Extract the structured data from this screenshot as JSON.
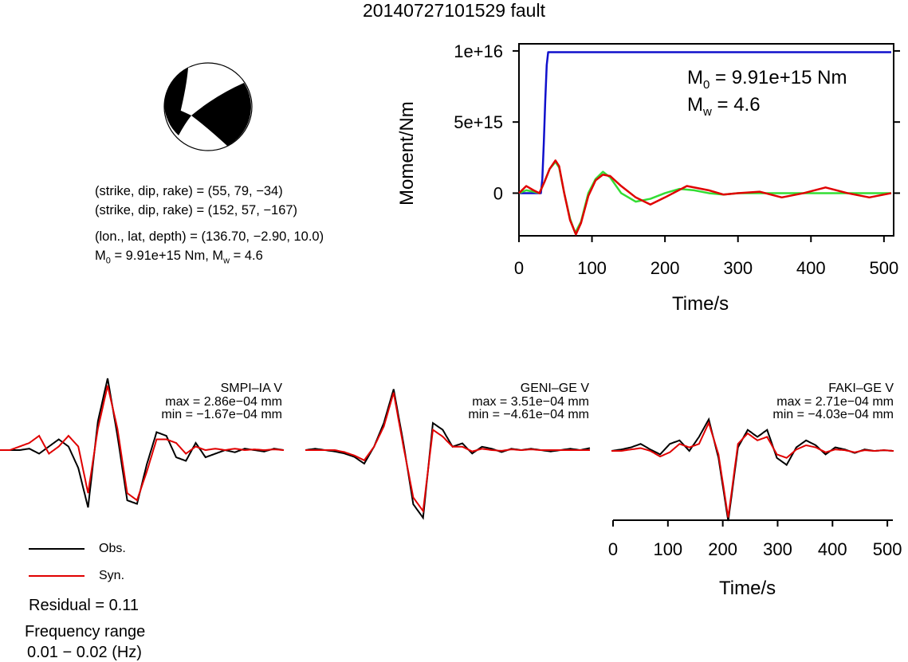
{
  "title": "20140727101529 fault",
  "mechanism": {
    "plane1": "(strike, dip, rake) = (55, 79, −34)",
    "plane2": "(strike, dip, rake) = (152, 57, −167)",
    "location": "(lon., lat, depth) = (136.70, −2.90, 10.0)",
    "moment_line_base": "M",
    "moment_line_sub": "0",
    "moment_line_rest": " = 9.91e+15 Nm, M",
    "moment_line_sub2": "w",
    "moment_line_end": " = 4.6"
  },
  "moment_panel": {
    "annot_m0_base": "M",
    "annot_m0_sub": "0",
    "annot_m0_value": " = 9.91e+15 Nm",
    "annot_mw_base": "M",
    "annot_mw_sub": "w",
    "annot_mw_value": " = 4.6"
  },
  "stations": [
    {
      "name": "SMPI–IA V",
      "max": "max = 2.86e−04 mm",
      "min": "min = −1.67e−04 mm"
    },
    {
      "name": "GENI–GE V",
      "max": "max = 3.51e−04 mm",
      "min": "min = −4.61e−04 mm"
    },
    {
      "name": "FAKI–GE V",
      "max": "max = 2.71e−04 mm",
      "min": "min = −4.03e−04 mm"
    }
  ],
  "legend": {
    "obs": "Obs.",
    "syn": "Syn."
  },
  "residual": "Residual = 0.11",
  "frequency_label": "Frequency range",
  "frequency_value": "0.01 − 0.02 (Hz)",
  "colors": {
    "obs": "#000000",
    "syn": "#e00000",
    "moment": "#1010cc",
    "green": "#33dd33"
  },
  "chart_data": [
    {
      "type": "line",
      "title": "",
      "xlabel": "Time/s",
      "ylabel": "Moment/Nm",
      "xlim": [
        0,
        510
      ],
      "ylim": [
        -3000000000000000.0,
        1.05e+16
      ],
      "xticks": [
        "0",
        "100",
        "200",
        "300",
        "400",
        "500"
      ],
      "yticks": [
        "0",
        "5e+15",
        "1e+16"
      ],
      "series": [
        {
          "key": "moment",
          "x": [
            0,
            10,
            28,
            30,
            32,
            34,
            36,
            38,
            40,
            60,
            100,
            200,
            300,
            400,
            510
          ],
          "y": [
            0,
            0,
            0,
            0,
            1000000000000000.0,
            3500000000000000.0,
            6500000000000000.0,
            9000000000000000.0,
            9910000000000000.0,
            9910000000000000.0,
            9910000000000000.0,
            9910000000000000.0,
            9910000000000000.0,
            9910000000000000.0,
            9910000000000000.0
          ]
        },
        {
          "key": "rate_green",
          "x": [
            0,
            10,
            20,
            28,
            35,
            42,
            50,
            55,
            62,
            70,
            77,
            85,
            95,
            105,
            115,
            125,
            140,
            160,
            180,
            200,
            220,
            240,
            260,
            280,
            300,
            330,
            360,
            400,
            450,
            510
          ],
          "y": [
            0,
            200000000000000.0,
            100000000000000.0,
            0,
            800000000000000.0,
            1700000000000000.0,
            2200000000000000.0,
            1800000000000000.0,
            0,
            -1800000000000000.0,
            -2800000000000000.0,
            -2000000000000000.0,
            0,
            1000000000000000.0,
            1500000000000000.0,
            1100000000000000.0,
            0,
            -600000000000000.0,
            -400000000000000.0,
            0,
            300000000000000.0,
            200000000000000.0,
            0,
            -100000000000000.0,
            0,
            0,
            0,
            0,
            0,
            0
          ]
        },
        {
          "key": "rate_red",
          "x": [
            0,
            10,
            20,
            28,
            35,
            42,
            50,
            55,
            62,
            70,
            78,
            85,
            95,
            105,
            115,
            125,
            140,
            160,
            180,
            200,
            230,
            260,
            280,
            300,
            330,
            360,
            390,
            420,
            450,
            480,
            510
          ],
          "y": [
            0,
            500000000000000.0,
            200000000000000.0,
            0,
            800000000000000.0,
            1700000000000000.0,
            2300000000000000.0,
            1900000000000000.0,
            0,
            -1900000000000000.0,
            -2900000000000000.0,
            -2100000000000000.0,
            -200000000000000.0,
            900000000000000.0,
            1300000000000000.0,
            1200000000000000.0,
            500000000000000.0,
            -300000000000000.0,
            -800000000000000.0,
            -300000000000000.0,
            500000000000000.0,
            200000000000000.0,
            -100000000000000.0,
            0,
            100000000000000.0,
            -300000000000000.0,
            0,
            400000000000000.0,
            0,
            -300000000000000.0,
            0
          ]
        }
      ]
    },
    {
      "type": "line",
      "title": "",
      "xlabel": "Time/s",
      "xlim": [
        0,
        510
      ],
      "xticks": [
        "0",
        "100",
        "200",
        "300",
        "400",
        "500"
      ],
      "traces": [
        {
          "station": "SMPI–IA V",
          "obs": [
            0,
            0,
            0,
            0.02,
            -0.05,
            0.05,
            0.15,
            0.05,
            -0.25,
            -0.8,
            0.4,
            1.0,
            0.2,
            -0.7,
            -0.75,
            -0.2,
            0.25,
            0.2,
            -0.1,
            -0.15,
            0.1,
            -0.1,
            -0.05,
            0,
            -0.03,
            0.02,
            0,
            -0.02,
            0.02,
            0
          ],
          "syn": [
            0,
            0,
            0.05,
            0.1,
            0.2,
            -0.05,
            0.05,
            0.2,
            0.05,
            -0.6,
            0.3,
            0.9,
            0.3,
            -0.6,
            -0.7,
            -0.3,
            0.15,
            0.15,
            0.1,
            -0.05,
            0.05,
            0,
            0.02,
            0,
            0.02,
            0,
            0.01,
            0,
            0.01,
            0
          ]
        },
        {
          "station": "GENI–GE V",
          "obs": [
            0,
            0.02,
            0,
            -0.02,
            -0.05,
            -0.1,
            -0.2,
            0.05,
            0.4,
            0.9,
            0.1,
            -0.8,
            -1.0,
            0.4,
            0.3,
            0.05,
            0.1,
            -0.05,
            0.05,
            0.02,
            -0.03,
            0.02,
            0,
            0.02,
            0,
            -0.02,
            0,
            0.02,
            0,
            0.03
          ],
          "syn": [
            0,
            0,
            0,
            0,
            -0.03,
            -0.08,
            -0.15,
            0.05,
            0.35,
            0.85,
            0.05,
            -0.7,
            -0.9,
            0.3,
            0.2,
            0.05,
            0.05,
            -0.02,
            0.02,
            0,
            -0.01,
            0.01,
            0,
            0.01,
            0,
            0,
            0,
            0,
            0,
            0
          ]
        },
        {
          "station": "FAKI–GE V",
          "obs": [
            0,
            0.02,
            0.05,
            0.1,
            0.02,
            -0.05,
            0.1,
            0.15,
            0.0,
            0.2,
            0.45,
            -0.1,
            -1.0,
            0.05,
            0.3,
            0.2,
            0.3,
            -0.1,
            -0.2,
            0.05,
            0.15,
            0.08,
            -0.05,
            0.05,
            0.02,
            -0.03,
            0.02,
            0,
            0.01,
            0
          ],
          "syn": [
            0,
            0,
            0.02,
            0.04,
            0.0,
            -0.08,
            -0.02,
            0.1,
            0.05,
            0.1,
            0.4,
            -0.05,
            -0.95,
            0.1,
            0.25,
            0.15,
            0.2,
            -0.05,
            -0.1,
            0.02,
            0.08,
            0.05,
            -0.02,
            0.02,
            0.01,
            -0.02,
            0.01,
            0,
            0.01,
            0
          ]
        }
      ]
    }
  ]
}
